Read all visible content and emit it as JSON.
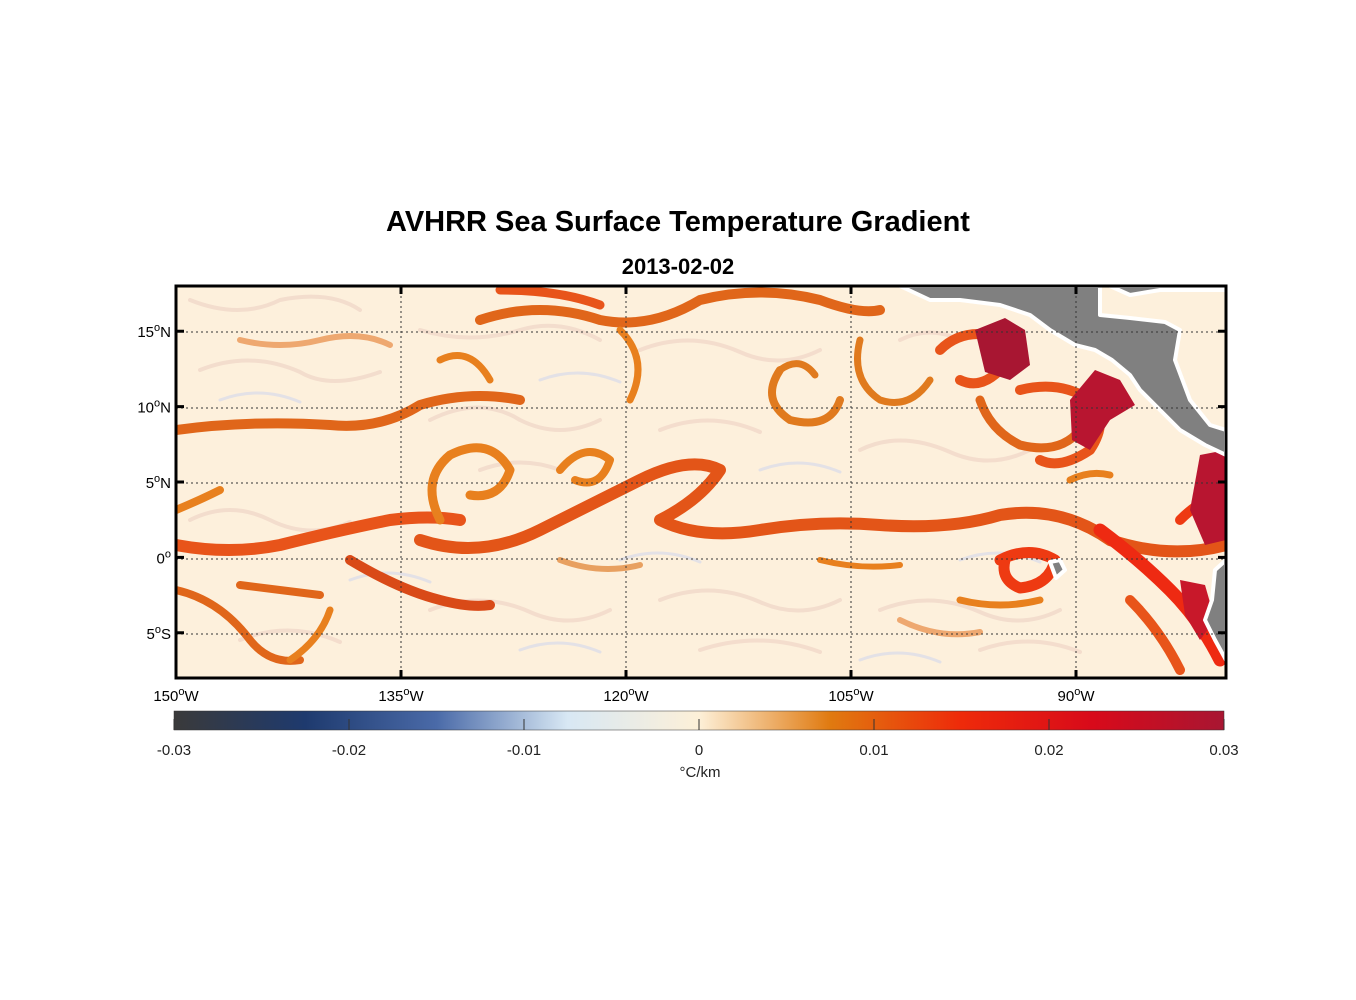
{
  "title": "AVHRR Sea Surface Temperature Gradient",
  "subtitle": "2013-02-02",
  "colorbar": {
    "units": "°C/km",
    "ticks": [
      {
        "value": -0.03,
        "label": "-0.03"
      },
      {
        "value": -0.02,
        "label": "-0.02"
      },
      {
        "value": -0.01,
        "label": "-0.01"
      },
      {
        "value": 0,
        "label": "0"
      },
      {
        "value": 0.01,
        "label": "0.01"
      },
      {
        "value": 0.02,
        "label": "0.02"
      },
      {
        "value": 0.03,
        "label": "0.03"
      }
    ],
    "range": [
      -0.03,
      0.03
    ],
    "colormap": [
      "#3a3a3a",
      "#1e3a6e",
      "#4a6aa8",
      "#d8e8f4",
      "#fdf0d8",
      "#e07a10",
      "#ee2a0a",
      "#d80a1a",
      "#a81632"
    ]
  },
  "map": {
    "lon_range": [
      -150,
      -80
    ],
    "lat_range": [
      -8,
      18
    ],
    "lon_ticks": [
      {
        "value": -150,
        "deg": "150",
        "hem": "W"
      },
      {
        "value": -135,
        "deg": "135",
        "hem": "W"
      },
      {
        "value": -120,
        "deg": "120",
        "hem": "W"
      },
      {
        "value": -105,
        "deg": "105",
        "hem": "W"
      },
      {
        "value": -90,
        "deg": "90",
        "hem": "W"
      }
    ],
    "lat_ticks": [
      {
        "value": 15,
        "deg": "15",
        "hem": "N"
      },
      {
        "value": 10,
        "deg": "10",
        "hem": "N"
      },
      {
        "value": 5,
        "deg": "5",
        "hem": "N"
      },
      {
        "value": 0,
        "deg": "0",
        "hem": ""
      },
      {
        "value": -5,
        "deg": "5",
        "hem": "S"
      }
    ],
    "background_color": "#fdf0dc",
    "land_color": "#808080",
    "grid": true
  }
}
